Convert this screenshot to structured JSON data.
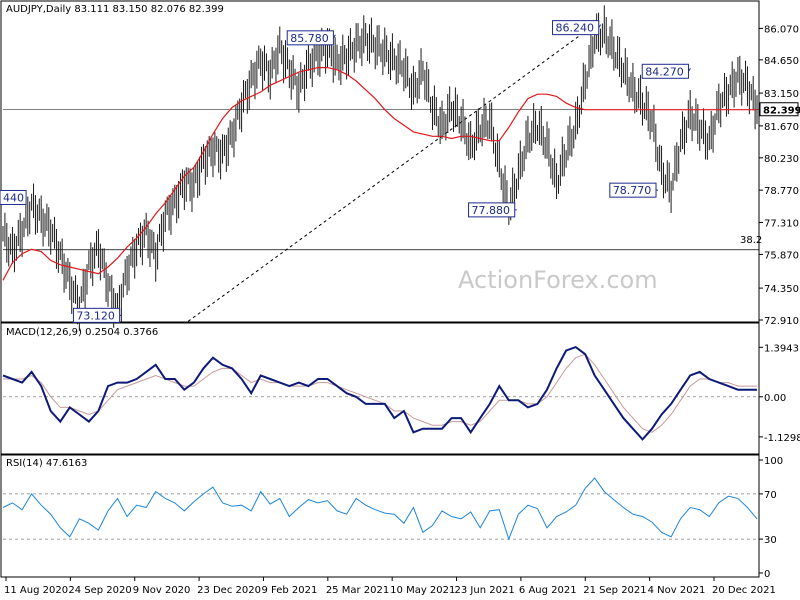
{
  "title": "AUDJPY,Daily  83.111 83.150 82.076 82.399",
  "watermark": "ActionForex.com",
  "colors": {
    "price": "#1a1a1a",
    "ma": "#e0181c",
    "macd": "#0d1a78",
    "macd_signal": "#c99a9a",
    "rsi": "#1f86d8",
    "callout_border": "#1c2a8c",
    "callout_text": "#1c2a8c",
    "grid_dash": "#808080"
  },
  "chart_data": [
    {
      "type": "line",
      "panel": "price",
      "title": "AUDJPY,Daily  83.111 83.150 82.076 82.399",
      "ylim": [
        72.91,
        86.72
      ],
      "y_ticks": [
        "86.070",
        "84.650",
        "83.150",
        "81.670",
        "80.230",
        "78.770",
        "77.310",
        "75.870",
        "74.350",
        "72.910"
      ],
      "current_price": "82.399",
      "fib_label": "38.2",
      "fib_level": 76.08,
      "trendline": [
        [
          73.12,
          72.85
        ],
        [
          86.24,
          86.24
        ]
      ],
      "series": [
        {
          "name": "price",
          "x": [
            0,
            5,
            10,
            15,
            20,
            25,
            30,
            35,
            40,
            45,
            50,
            55,
            60,
            65,
            70,
            75,
            80,
            85,
            90,
            95,
            100,
            105,
            110,
            115,
            120,
            125,
            130,
            135,
            140,
            145,
            150,
            155,
            160,
            165,
            170,
            175,
            180,
            185,
            190,
            195,
            200,
            205,
            210,
            215,
            220,
            225,
            230,
            235,
            240,
            245,
            250,
            255,
            260,
            265,
            270,
            275,
            280,
            285,
            290,
            295,
            300,
            305,
            310,
            315,
            320,
            325,
            330,
            335,
            340,
            345,
            350,
            355,
            360,
            365,
            370,
            375,
            380,
            385,
            390,
            395
          ],
          "values": [
            76.8,
            76.0,
            76.9,
            78.1,
            77.5,
            77.0,
            75.8,
            74.6,
            73.5,
            75.3,
            76.2,
            74.5,
            73.3,
            75.1,
            76.2,
            76.9,
            75.8,
            77.6,
            78.2,
            79.1,
            79.0,
            80.1,
            80.6,
            80.4,
            81.2,
            82.6,
            83.7,
            84.6,
            84.0,
            85.2,
            84.2,
            83.3,
            84.4,
            84.9,
            85.2,
            84.5,
            84.8,
            85.3,
            85.6,
            85.3,
            85.0,
            84.6,
            84.3,
            83.2,
            84.2,
            82.5,
            81.6,
            82.5,
            81.9,
            80.7,
            81.6,
            81.9,
            79.9,
            77.9,
            79.5,
            81.1,
            81.7,
            80.8,
            79.1,
            80.5,
            81.6,
            83.7,
            85.6,
            85.9,
            85.1,
            84.2,
            83.3,
            82.7,
            81.9,
            79.6,
            78.8,
            80.9,
            82.2,
            81.6,
            80.9,
            82.6,
            83.2,
            83.9,
            83.5,
            82.4
          ]
        },
        {
          "name": "MA",
          "x": [
            0,
            5,
            10,
            15,
            20,
            25,
            30,
            35,
            40,
            45,
            50,
            55,
            60,
            65,
            70,
            75,
            80,
            85,
            90,
            95,
            100,
            105,
            110,
            115,
            120,
            125,
            130,
            135,
            140,
            145,
            150,
            155,
            160,
            165,
            170,
            175,
            180,
            185,
            190,
            195,
            200,
            205,
            210,
            215,
            220,
            225,
            230,
            235,
            240,
            245,
            250,
            255,
            260,
            265,
            270,
            275,
            280,
            285,
            290,
            295,
            300,
            305,
            310,
            315,
            320,
            325,
            330,
            335,
            340,
            345,
            350,
            355,
            360,
            365,
            370,
            375,
            380,
            385,
            390,
            395
          ],
          "values": [
            74.7,
            75.5,
            75.9,
            76.1,
            76.0,
            75.6,
            75.4,
            75.3,
            75.2,
            75.1,
            75.0,
            75.3,
            75.7,
            76.2,
            76.6,
            77.1,
            77.7,
            78.2,
            78.8,
            79.4,
            79.8,
            80.5,
            81.3,
            82.0,
            82.5,
            82.8,
            83.0,
            83.2,
            83.5,
            83.7,
            83.9,
            84.1,
            84.2,
            84.3,
            84.3,
            84.2,
            84.0,
            83.7,
            83.3,
            82.9,
            82.4,
            82.0,
            81.7,
            81.4,
            81.3,
            81.2,
            81.2,
            81.1,
            81.2,
            81.2,
            81.1,
            81.0,
            81.0,
            81.6,
            82.3,
            82.9,
            83.1,
            83.1,
            83.0,
            82.7,
            82.5,
            82.4,
            82.4,
            82.4,
            82.4,
            82.4,
            82.4,
            82.4,
            82.4,
            82.4,
            82.4,
            82.4,
            82.4,
            82.4,
            82.4,
            82.4,
            82.4,
            82.4,
            82.4,
            82.4
          ]
        }
      ],
      "annotations": [
        {
          "label": "85.780",
          "x": 171,
          "value": 85.78
        },
        {
          "label": "86.240",
          "x": 310,
          "value": 86.24
        },
        {
          "label": "84.270",
          "x": 357,
          "value": 84.27
        },
        {
          "label": "77.880",
          "x": 266,
          "value": 77.88
        },
        {
          "label": "78.770",
          "x": 340,
          "value": 78.77
        },
        {
          "label": "73.120",
          "x": 59,
          "value": 73.12
        },
        {
          "label": "440",
          "x": 0,
          "value": 78.44
        }
      ]
    },
    {
      "type": "line",
      "panel": "macd",
      "title": "MACD(12,26,9) 0.2504 0.3766",
      "y_ticks": [
        "1.3943",
        "0.00",
        "-1.1298"
      ],
      "ylim": [
        -1.5,
        1.6
      ],
      "series": [
        {
          "name": "MACD",
          "x": [
            0,
            5,
            10,
            15,
            20,
            25,
            30,
            35,
            40,
            45,
            50,
            55,
            60,
            65,
            70,
            75,
            80,
            85,
            90,
            95,
            100,
            105,
            110,
            115,
            120,
            125,
            130,
            135,
            140,
            145,
            150,
            155,
            160,
            165,
            170,
            175,
            180,
            185,
            190,
            195,
            200,
            205,
            210,
            215,
            220,
            225,
            230,
            235,
            240,
            245,
            250,
            255,
            260,
            265,
            270,
            275,
            280,
            285,
            290,
            295,
            300,
            305,
            310,
            315,
            320,
            325,
            330,
            335,
            340,
            345,
            350,
            355,
            360,
            365,
            370,
            375,
            380,
            385,
            390,
            395
          ],
          "values": [
            0.6,
            0.5,
            0.4,
            0.7,
            0.3,
            -0.4,
            -0.7,
            -0.3,
            -0.5,
            -0.7,
            -0.4,
            0.3,
            0.4,
            0.4,
            0.5,
            0.7,
            0.9,
            0.5,
            0.5,
            0.2,
            0.4,
            0.8,
            1.1,
            0.9,
            0.8,
            0.5,
            0.1,
            0.6,
            0.5,
            0.4,
            0.3,
            0.4,
            0.3,
            0.5,
            0.5,
            0.3,
            0.1,
            0.0,
            -0.2,
            -0.2,
            -0.2,
            -0.6,
            -0.4,
            -1.0,
            -0.9,
            -0.9,
            -0.9,
            -0.6,
            -0.6,
            -1.0,
            -0.6,
            -0.2,
            0.3,
            -0.1,
            -0.1,
            -0.3,
            -0.2,
            0.2,
            0.8,
            1.3,
            1.4,
            1.2,
            0.6,
            0.2,
            -0.2,
            -0.6,
            -0.9,
            -1.2,
            -0.9,
            -0.5,
            -0.2,
            0.2,
            0.6,
            0.7,
            0.5,
            0.4,
            0.3,
            0.2,
            0.2,
            0.2
          ]
        },
        {
          "name": "Signal",
          "x": [
            0,
            5,
            10,
            15,
            20,
            25,
            30,
            35,
            40,
            45,
            50,
            55,
            60,
            65,
            70,
            75,
            80,
            85,
            90,
            95,
            100,
            105,
            110,
            115,
            120,
            125,
            130,
            135,
            140,
            145,
            150,
            155,
            160,
            165,
            170,
            175,
            180,
            185,
            190,
            195,
            200,
            205,
            210,
            215,
            220,
            225,
            230,
            235,
            240,
            245,
            250,
            255,
            260,
            265,
            270,
            275,
            280,
            285,
            290,
            295,
            300,
            305,
            310,
            315,
            320,
            325,
            330,
            335,
            340,
            345,
            350,
            355,
            360,
            365,
            370,
            375,
            380,
            385,
            390,
            395
          ],
          "values": [
            0.5,
            0.5,
            0.5,
            0.6,
            0.4,
            0.0,
            -0.3,
            -0.3,
            -0.4,
            -0.5,
            -0.4,
            -0.1,
            0.2,
            0.3,
            0.4,
            0.5,
            0.6,
            0.5,
            0.4,
            0.3,
            0.3,
            0.5,
            0.7,
            0.8,
            0.8,
            0.6,
            0.4,
            0.5,
            0.4,
            0.4,
            0.3,
            0.3,
            0.3,
            0.4,
            0.4,
            0.3,
            0.2,
            0.1,
            0.0,
            -0.1,
            -0.2,
            -0.4,
            -0.4,
            -0.6,
            -0.7,
            -0.8,
            -0.8,
            -0.7,
            -0.7,
            -0.8,
            -0.7,
            -0.4,
            -0.1,
            -0.1,
            -0.1,
            -0.2,
            -0.2,
            0.0,
            0.4,
            0.8,
            1.1,
            1.2,
            0.9,
            0.5,
            0.1,
            -0.3,
            -0.6,
            -0.9,
            -1.0,
            -0.8,
            -0.5,
            -0.1,
            0.3,
            0.5,
            0.5,
            0.4,
            0.4,
            0.3,
            0.3,
            0.3
          ]
        }
      ]
    },
    {
      "type": "line",
      "panel": "rsi",
      "title": "RSI(14) 47.6163",
      "y_ticks": [
        "100",
        "70",
        "30",
        "0"
      ],
      "ylim": [
        0,
        100
      ],
      "levels": [
        70,
        30
      ],
      "series": [
        {
          "name": "RSI",
          "x": [
            0,
            5,
            10,
            15,
            20,
            25,
            30,
            35,
            40,
            45,
            50,
            55,
            60,
            65,
            70,
            75,
            80,
            85,
            90,
            95,
            100,
            105,
            110,
            115,
            120,
            125,
            130,
            135,
            140,
            145,
            150,
            155,
            160,
            165,
            170,
            175,
            180,
            185,
            190,
            195,
            200,
            205,
            210,
            215,
            220,
            225,
            230,
            235,
            240,
            245,
            250,
            255,
            260,
            265,
            270,
            275,
            280,
            285,
            290,
            295,
            300,
            305,
            310,
            315,
            320,
            325,
            330,
            335,
            340,
            345,
            350,
            355,
            360,
            365,
            370,
            375,
            380,
            385,
            390,
            395
          ],
          "values": [
            58,
            62,
            56,
            70,
            60,
            52,
            40,
            32,
            48,
            44,
            38,
            55,
            66,
            50,
            60,
            58,
            72,
            66,
            62,
            55,
            63,
            70,
            76,
            62,
            59,
            60,
            55,
            72,
            61,
            66,
            50,
            58,
            65,
            62,
            64,
            55,
            52,
            66,
            60,
            56,
            53,
            52,
            44,
            58,
            36,
            42,
            55,
            50,
            48,
            54,
            40,
            55,
            56,
            30,
            52,
            60,
            57,
            40,
            50,
            54,
            60,
            75,
            84,
            72,
            65,
            58,
            52,
            50,
            45,
            36,
            32,
            48,
            58,
            56,
            50,
            62,
            68,
            66,
            58,
            48
          ]
        }
      ]
    }
  ],
  "x_axis": {
    "labels": [
      "11 Aug 2020",
      "24 Sep 2020",
      "9 Nov 2020",
      "23 Dec 2020",
      "9 Feb 2021",
      "25 Mar 2021",
      "10 May 2021",
      "23 Jun 2021",
      "6 Aug 2021",
      "21 Sep 2021",
      "4 Nov 2021",
      "20 Dec 2021"
    ]
  }
}
